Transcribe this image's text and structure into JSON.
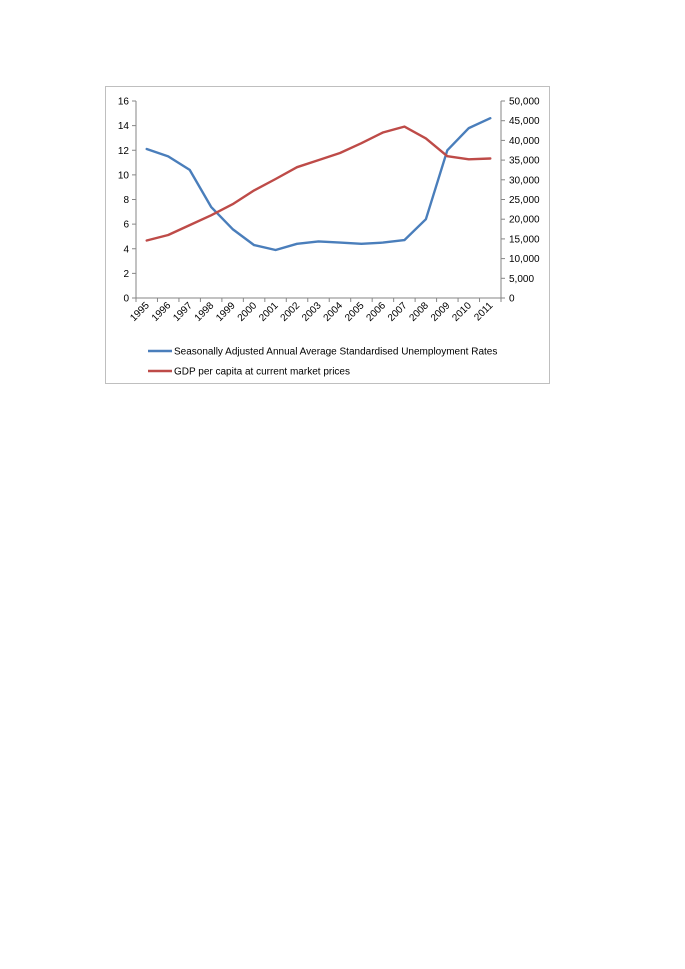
{
  "chart_data": {
    "type": "line",
    "title": "",
    "xlabel": "",
    "ylabel": "",
    "y2label": "",
    "categories": [
      "1995",
      "1996",
      "1997",
      "1998",
      "1999",
      "2000",
      "2001",
      "2002",
      "2003",
      "2004",
      "2005",
      "2006",
      "2007",
      "2008",
      "2009",
      "2010",
      "2011"
    ],
    "ylim": [
      0,
      16
    ],
    "y_ticks": [
      "0",
      "2",
      "4",
      "6",
      "8",
      "10",
      "12",
      "14",
      "16"
    ],
    "y2lim": [
      0,
      50000
    ],
    "y2_ticks": [
      "0",
      "5,000",
      "10,000",
      "15,000",
      "20,000",
      "25,000",
      "30,000",
      "35,000",
      "40,000",
      "45,000",
      "50,000"
    ],
    "grid": false,
    "legend_position": "bottom",
    "series": [
      {
        "name": "Seasonally Adjusted Annual Average Standardised Unemployment Rates",
        "axis": "left",
        "color": "#4a7ebb",
        "values": [
          12.1,
          11.5,
          10.4,
          7.4,
          5.6,
          4.3,
          3.9,
          4.4,
          4.6,
          4.5,
          4.4,
          4.5,
          4.7,
          6.4,
          12.0,
          13.8,
          14.6
        ]
      },
      {
        "name": "GDP per capita at current market prices",
        "axis": "right",
        "color": "#be4b48",
        "values": [
          14600,
          16000,
          18500,
          21000,
          23800,
          27300,
          30200,
          33200,
          35000,
          36800,
          39300,
          42000,
          43500,
          40500,
          36000,
          35200,
          35400
        ]
      }
    ]
  }
}
